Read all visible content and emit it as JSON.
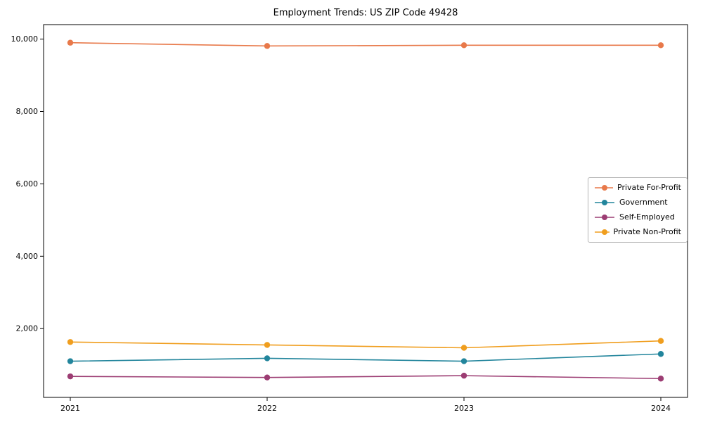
{
  "chart_data": {
    "type": "line",
    "title": "Employment Trends: US ZIP Code 49428",
    "x": [
      "2021",
      "2022",
      "2023",
      "2024"
    ],
    "series": [
      {
        "name": "Private For-Profit",
        "color": "#e8794a",
        "values": [
          9900,
          9810,
          9830,
          9830
        ]
      },
      {
        "name": "Government",
        "color": "#22859c",
        "values": [
          1100,
          1180,
          1100,
          1300
        ]
      },
      {
        "name": "Self-Employed",
        "color": "#9c3d73",
        "values": [
          680,
          650,
          700,
          620
        ]
      },
      {
        "name": "Private Non-Profit",
        "color": "#f09e1e",
        "values": [
          1630,
          1550,
          1470,
          1660
        ]
      }
    ],
    "ylim": [
      100,
      10400
    ],
    "yticks": [
      {
        "value": 2000,
        "label": "2,000"
      },
      {
        "value": 4000,
        "label": "4,000"
      },
      {
        "value": 6000,
        "label": "6,000"
      },
      {
        "value": 8000,
        "label": "8,000"
      },
      {
        "value": 10000,
        "label": "10,000"
      }
    ],
    "xlabel": "",
    "ylabel": "",
    "grid": false,
    "legend_position": "center right",
    "marker": "circle"
  }
}
